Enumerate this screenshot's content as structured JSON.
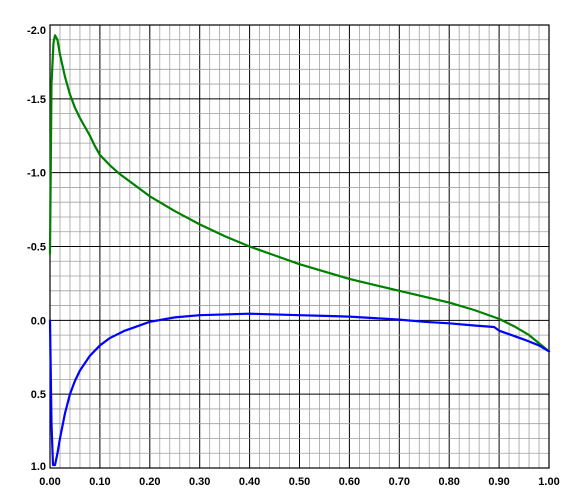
{
  "chart_data": {
    "type": "line",
    "title": "",
    "xlabel": "",
    "ylabel": "",
    "xlim": [
      0,
      1
    ],
    "ylim": [
      -2.0,
      1.0
    ],
    "y_inverted": true,
    "grid": true,
    "x_ticks": [
      0.0,
      0.1,
      0.2,
      0.3,
      0.4,
      0.5,
      0.6,
      0.7,
      0.8,
      0.9,
      1.0
    ],
    "x_tick_labels": [
      "0.00",
      "0.10",
      "0.20",
      "0.30",
      "0.40",
      "0.50",
      "0.60",
      "0.70",
      "0.80",
      "0.90",
      "1.00"
    ],
    "y_ticks": [
      -2.0,
      -1.5,
      -1.0,
      -0.5,
      0.0,
      0.5,
      1.0
    ],
    "y_tick_labels": [
      "-2.0",
      "-1.5",
      "-1.0",
      "-0.5",
      "0.0",
      "0.5",
      "1.0"
    ],
    "series": [
      {
        "color": "#008000",
        "points": [
          [
            0.0,
            -0.45
          ],
          [
            0.003,
            -1.6
          ],
          [
            0.007,
            -1.88
          ],
          [
            0.01,
            -1.93
          ],
          [
            0.015,
            -1.9
          ],
          [
            0.02,
            -1.8
          ],
          [
            0.03,
            -1.65
          ],
          [
            0.04,
            -1.53
          ],
          [
            0.05,
            -1.44
          ],
          [
            0.06,
            -1.37
          ],
          [
            0.07,
            -1.31
          ],
          [
            0.08,
            -1.25
          ],
          [
            0.09,
            -1.18
          ],
          [
            0.1,
            -1.12
          ],
          [
            0.12,
            -1.05
          ],
          [
            0.14,
            -0.99
          ],
          [
            0.16,
            -0.94
          ],
          [
            0.18,
            -0.89
          ],
          [
            0.2,
            -0.84
          ],
          [
            0.25,
            -0.74
          ],
          [
            0.3,
            -0.65
          ],
          [
            0.35,
            -0.57
          ],
          [
            0.4,
            -0.5
          ],
          [
            0.45,
            -0.44
          ],
          [
            0.5,
            -0.38
          ],
          [
            0.55,
            -0.33
          ],
          [
            0.6,
            -0.28
          ],
          [
            0.65,
            -0.24
          ],
          [
            0.7,
            -0.2
          ],
          [
            0.75,
            -0.16
          ],
          [
            0.8,
            -0.12
          ],
          [
            0.85,
            -0.07
          ],
          [
            0.9,
            -0.01
          ],
          [
            0.93,
            0.04
          ],
          [
            0.96,
            0.1
          ],
          [
            1.0,
            0.21
          ]
        ]
      },
      {
        "color": "#0000ff",
        "points": [
          [
            0.0,
            0.0
          ],
          [
            0.003,
            0.7
          ],
          [
            0.006,
            0.98
          ],
          [
            0.01,
            0.98
          ],
          [
            0.015,
            0.9
          ],
          [
            0.02,
            0.8
          ],
          [
            0.03,
            0.63
          ],
          [
            0.04,
            0.5
          ],
          [
            0.05,
            0.41
          ],
          [
            0.06,
            0.34
          ],
          [
            0.08,
            0.24
          ],
          [
            0.1,
            0.17
          ],
          [
            0.12,
            0.12
          ],
          [
            0.15,
            0.07
          ],
          [
            0.2,
            0.01
          ],
          [
            0.25,
            -0.02
          ],
          [
            0.3,
            -0.035
          ],
          [
            0.35,
            -0.04
          ],
          [
            0.4,
            -0.045
          ],
          [
            0.45,
            -0.04
          ],
          [
            0.5,
            -0.035
          ],
          [
            0.55,
            -0.03
          ],
          [
            0.6,
            -0.025
          ],
          [
            0.65,
            -0.015
          ],
          [
            0.7,
            -0.005
          ],
          [
            0.75,
            0.01
          ],
          [
            0.8,
            0.02
          ],
          [
            0.85,
            0.035
          ],
          [
            0.89,
            0.045
          ],
          [
            0.9,
            0.07
          ],
          [
            0.95,
            0.13
          ],
          [
            0.98,
            0.17
          ],
          [
            1.0,
            0.21
          ]
        ]
      }
    ]
  }
}
